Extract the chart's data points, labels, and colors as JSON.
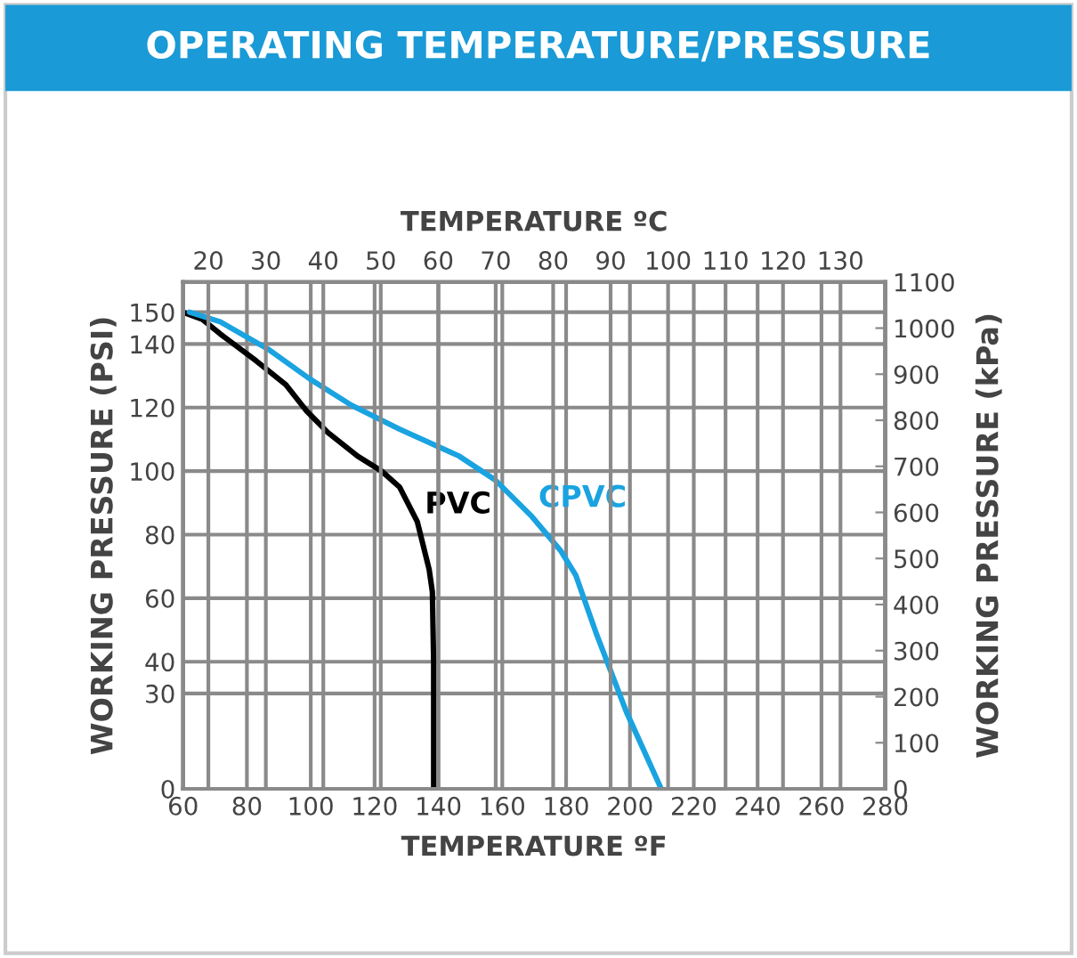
{
  "chart_data": {
    "type": "line",
    "title": "OPERATING TEMPERATURE/PRESSURE",
    "xlabel": "TEMPERATURE ºF",
    "x2label": "TEMPERATURE ºC",
    "ylabel": "WORKING PRESSURE (PSI)",
    "y2label": "WORKING PRESSURE (kPa)",
    "series": [
      {
        "name": "PVC",
        "color": "#000000",
        "x": [
          60,
          66,
          71.6,
          82.9,
          92.2,
          98.8,
          105.3,
          114.7,
          122.2,
          127.8,
          133.4,
          137.1,
          138.1,
          138.5,
          138.5
        ],
        "values": [
          150,
          147.8,
          143.2,
          134.7,
          127.2,
          118.8,
          112.2,
          104.7,
          100,
          95,
          84,
          69,
          62,
          40,
          0
        ]
      },
      {
        "name": "CPVC",
        "color": "#1aa3e0",
        "x": [
          62,
          71.6,
          86.6,
          99.7,
          112.8,
          127.8,
          146.5,
          157.8,
          169,
          178.4,
          183,
          189.6,
          198.9,
          209.8
        ],
        "values": [
          150,
          147,
          138.4,
          129,
          120.7,
          113.2,
          104.7,
          97.2,
          86,
          74.8,
          67.3,
          48.5,
          24.2,
          0
        ]
      }
    ],
    "xlim": [
      60,
      280
    ],
    "xticks": [
      60,
      80,
      100,
      120,
      140,
      160,
      180,
      200,
      220,
      240,
      260,
      280
    ],
    "x2lim": [
      15.6,
      137.8
    ],
    "x2ticks": [
      20,
      30,
      40,
      50,
      60,
      70,
      80,
      90,
      100,
      110,
      120,
      130
    ],
    "ylim": [
      0,
      159.5
    ],
    "yticks": [
      0,
      30,
      40,
      60,
      80,
      100,
      120,
      140,
      150
    ],
    "y2lim": [
      0,
      1100
    ],
    "y2ticks": [
      0,
      100,
      200,
      300,
      400,
      500,
      600,
      700,
      800,
      900,
      1000,
      1100
    ],
    "grid": true,
    "legend": false,
    "marker": "none",
    "line_style": "solid"
  }
}
